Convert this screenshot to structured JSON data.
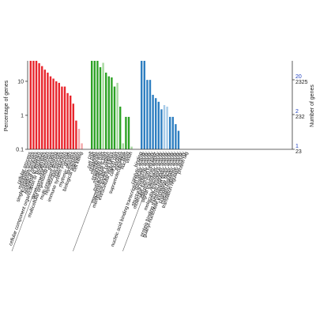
{
  "chart_data": {
    "type": "bar",
    "ylabel": "Percentage of genes",
    "y2label": "Number of genes",
    "yscale": "log",
    "ylim": [
      0.1,
      40
    ],
    "y_ticks": [
      "10",
      "1",
      "0.1"
    ],
    "right_ticks": [
      {
        "pct": "20",
        "count": "2325"
      },
      {
        "pct": "2",
        "count": "232"
      },
      {
        "pct": "1",
        "count": "23"
      }
    ],
    "groups": [
      {
        "name": "",
        "color": "#e8262d",
        "light_color": "#f4a7aa",
        "categories": [
          "cellular process",
          "metabolic process",
          "single-organism process",
          "biological regulation",
          "response to stimulus",
          "cellular component organization or biogenesis",
          "localization",
          "developmental process",
          "multicellular organismal process",
          "signaling",
          "multi-organism process",
          "reproductive process",
          "reproduction",
          "immune system process",
          "growth",
          "rhythmic process",
          "locomotion",
          "biological adhesion",
          "cell killing"
        ],
        "values": [
          40,
          40,
          40,
          34,
          28,
          22,
          18,
          14,
          12,
          10,
          9,
          7,
          7,
          4.5,
          3.8,
          2.2,
          0.7,
          0.4,
          0.15
        ],
        "light": [
          false,
          false,
          false,
          false,
          false,
          false,
          false,
          false,
          false,
          false,
          false,
          false,
          false,
          false,
          false,
          false,
          false,
          true,
          true
        ]
      },
      {
        "name": "",
        "color": "#2ea326",
        "light_color": "#a7d99f",
        "categories": [
          "cell",
          "cell part",
          "organelle",
          "membrane",
          "organelle part",
          "membrane part",
          "extracellular region",
          "macromolecular complex",
          "membrane-enclosed lumen",
          "extracellular region part",
          "cell junction",
          "symplast",
          "supramolecular fiber",
          "nucleoid",
          "virion"
        ],
        "values": [
          40,
          40,
          40,
          26,
          35,
          18,
          14,
          13,
          7,
          9,
          1.8,
          0.15,
          0.9,
          0.9,
          0.12
        ],
        "light": [
          false,
          false,
          false,
          false,
          true,
          false,
          false,
          false,
          false,
          true,
          false,
          true,
          false,
          false,
          true
        ]
      },
      {
        "name": "",
        "color": "#2f7fc1",
        "light_color": "#a7cbe8",
        "categories": [
          "binding",
          "catalytic activity",
          "nucleic acid binding transcription factor activity",
          "transporter activity",
          "structural molecule activity",
          "molecular function regulator",
          "electron carrier activity",
          "signal transducer activity",
          "antioxidant activity",
          "molecular transducer activity",
          "enzyme regulator activity",
          "protein binding transcription factor activity",
          "guanyl-nucleotide exchange factor activity",
          "channel regulator activity",
          "metallochaperone activity",
          "translation regulator activity",
          "protein tag"
        ],
        "values": [
          40,
          40,
          11,
          11,
          4,
          3.2,
          2.5,
          1.5,
          2,
          1.8,
          0.9,
          0.9,
          0.55,
          0.35,
          0.1,
          0.1,
          0.1
        ],
        "light": [
          false,
          false,
          false,
          false,
          false,
          false,
          false,
          false,
          true,
          true,
          false,
          false,
          false,
          false,
          false,
          false,
          false
        ]
      }
    ]
  }
}
